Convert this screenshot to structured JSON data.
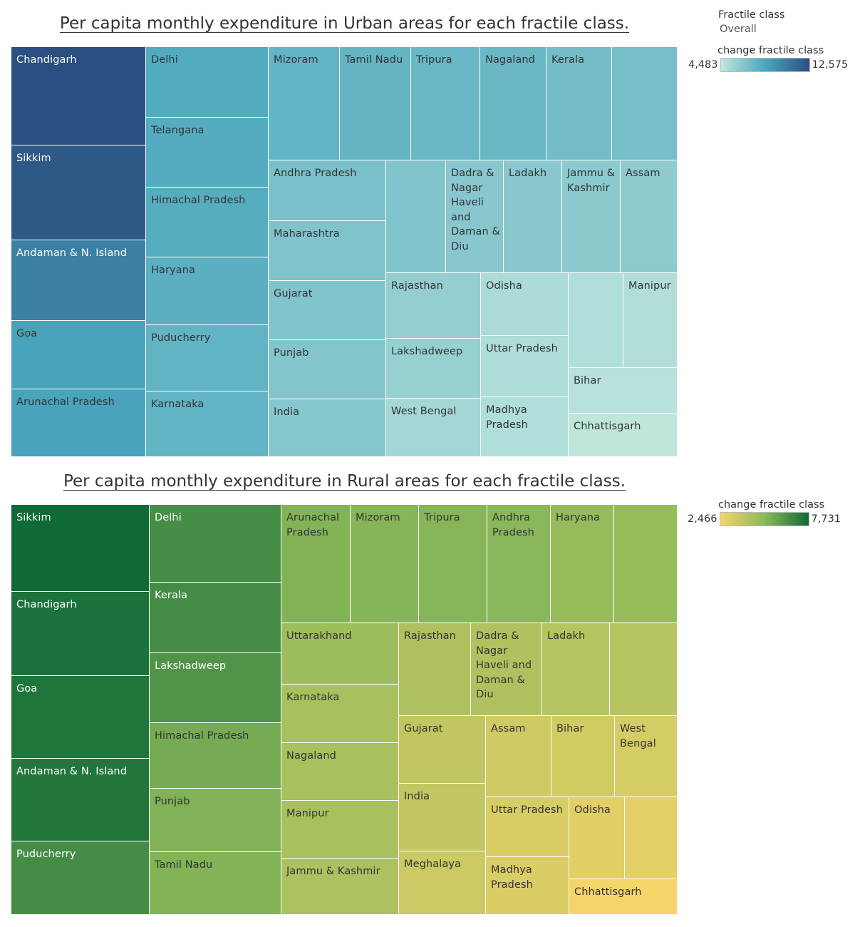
{
  "chart_data": [
    {
      "type": "treemap",
      "title": "Per capita monthly expenditure in Urban areas for each fractile class.",
      "filter": {
        "title": "Fractile class",
        "value": "Overall"
      },
      "legend": {
        "title": "change fractile class",
        "min_label": "4,483",
        "max_label": "12,575",
        "min": 4483,
        "max": 12575,
        "colors": [
          "#bfe6dc",
          "#4aa6bd",
          "#2a4f80"
        ]
      },
      "tiles": [
        {
          "label": "Chandigarh",
          "value": 12575
        },
        {
          "label": "Sikkim",
          "value": 12100
        },
        {
          "label": "Andaman & N. Island",
          "value": 10270
        },
        {
          "label": "Goa",
          "value": 8730
        },
        {
          "label": "Arunachal Pradesh",
          "value": 8650
        },
        {
          "label": "Delhi",
          "value": 8210
        },
        {
          "label": "Telangana",
          "value": 8160
        },
        {
          "label": "Himachal Pradesh",
          "value": 8080
        },
        {
          "label": "Haryana",
          "value": 7950
        },
        {
          "label": "Puducherry",
          "value": 7700
        },
        {
          "label": "Karnataka",
          "value": 7670
        },
        {
          "label": "Mizoram",
          "value": 7670
        },
        {
          "label": "Tamil Nadu",
          "value": 7630
        },
        {
          "label": "Tripura",
          "value": 7410
        },
        {
          "label": "Nagaland",
          "value": 7420
        },
        {
          "label": "Kerala",
          "value": 7080
        },
        {
          "label": "",
          "value": 7000
        },
        {
          "label": "Andhra Pradesh",
          "value": 6880
        },
        {
          "label": "Maharashtra",
          "value": 6660
        },
        {
          "label": "Gujarat",
          "value": 6620
        },
        {
          "label": "Punjab",
          "value": 6540
        },
        {
          "label": "India",
          "value": 6460
        },
        {
          "label": "",
          "value": 6640
        },
        {
          "label": "Dadra & Nagar Haveli and Daman & Diu",
          "value": 6420
        },
        {
          "label": "Ladakh",
          "value": 6350
        },
        {
          "label": "Jammu & Kashmir",
          "value": 6270
        },
        {
          "label": "Assam",
          "value": 6210
        },
        {
          "label": "Rajasthan",
          "value": 5980
        },
        {
          "label": "Lakshadweep",
          "value": 5890
        },
        {
          "label": "West Bengal",
          "value": 5400
        },
        {
          "label": "Odisha",
          "value": 5190
        },
        {
          "label": "Uttar Pradesh",
          "value": 5030
        },
        {
          "label": "Madhya Pradesh",
          "value": 4990
        },
        {
          "label": "",
          "value": 5000
        },
        {
          "label": "Manipur",
          "value": 4950
        },
        {
          "label": "Bihar",
          "value": 4770
        },
        {
          "label": "Chhattisgarh",
          "value": 4483
        }
      ]
    },
    {
      "type": "treemap",
      "title": "Per capita monthly expenditure in Rural areas for each fractile class.",
      "legend": {
        "title": "change fractile class",
        "min_label": "2,466",
        "max_label": "7,731",
        "min": 2466,
        "max": 7731,
        "colors": [
          "#f5d469",
          "#8cb95a",
          "#0f6a36"
        ]
      },
      "tiles": [
        {
          "label": "Sikkim",
          "value": 7731
        },
        {
          "label": "Chandigarh",
          "value": 7470
        },
        {
          "label": "Goa",
          "value": 7370
        },
        {
          "label": "Andaman & N. Island",
          "value": 7330
        },
        {
          "label": "Puducherry",
          "value": 6590
        },
        {
          "label": "Delhi",
          "value": 6580
        },
        {
          "label": "Kerala",
          "value": 6610
        },
        {
          "label": "Lakshadweep",
          "value": 6360
        },
        {
          "label": "Himachal Pradesh",
          "value": 5560
        },
        {
          "label": "Punjab",
          "value": 5320
        },
        {
          "label": "Tamil Nadu",
          "value": 5310
        },
        {
          "label": "Arunachal Pradesh",
          "value": 5300
        },
        {
          "label": "Mizoram",
          "value": 5220
        },
        {
          "label": "Tripura",
          "value": 5210
        },
        {
          "label": "Andhra Pradesh",
          "value": 5160
        },
        {
          "label": "Haryana",
          "value": 4860
        },
        {
          "label": "",
          "value": 4860
        },
        {
          "label": "Uttarakhand",
          "value": 4640
        },
        {
          "label": "Karnataka",
          "value": 4400
        },
        {
          "label": "Nagaland",
          "value": 4390
        },
        {
          "label": "Manipur",
          "value": 4370
        },
        {
          "label": "Jammu & Kashmir",
          "value": 4300
        },
        {
          "label": "Rajasthan",
          "value": 4260
        },
        {
          "label": "Dadra & Nagar Haveli and Daman & Diu",
          "value": 4200
        },
        {
          "label": "Ladakh",
          "value": 4040
        },
        {
          "label": "",
          "value": 4000
        },
        {
          "label": "Gujarat",
          "value": 3800
        },
        {
          "label": "India",
          "value": 3770
        },
        {
          "label": "Meghalaya",
          "value": 3510
        },
        {
          "label": "Assam",
          "value": 3430
        },
        {
          "label": "Bihar",
          "value": 3380
        },
        {
          "label": "West Bengal",
          "value": 3240
        },
        {
          "label": "Uttar Pradesh",
          "value": 3190
        },
        {
          "label": "Madhya Pradesh",
          "value": 3110
        },
        {
          "label": "Odisha",
          "value": 2950
        },
        {
          "label": "",
          "value": 2900
        },
        {
          "label": "Chhattisgarh",
          "value": 2466
        }
      ]
    }
  ]
}
